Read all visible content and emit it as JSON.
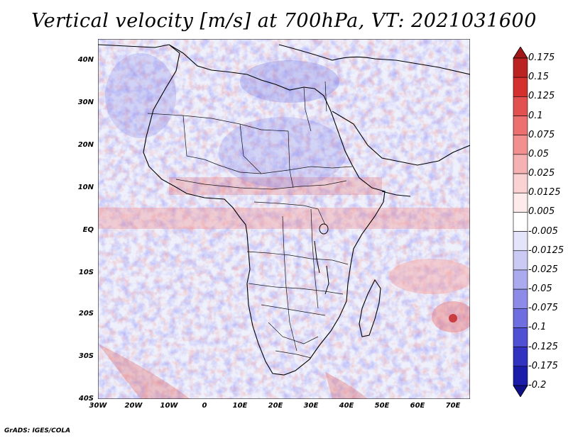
{
  "title": "Vertical velocity [m/s] at 700hPa, VT: 2021031600",
  "credit": "GrADS: IGES/COLA",
  "map": {
    "region": "Africa",
    "lat_labels": [
      "40N",
      "30N",
      "20N",
      "10N",
      "EQ",
      "10S",
      "20S",
      "30S",
      "40S"
    ],
    "lon_labels": [
      "30W",
      "20W",
      "10W",
      "0",
      "10E",
      "20E",
      "30E",
      "40E",
      "50E",
      "60E",
      "70E"
    ],
    "lat_range": [
      -40,
      45
    ],
    "lon_range": [
      -30,
      75
    ]
  },
  "colorbar": {
    "labels": [
      "0.175",
      "0.15",
      "0.125",
      "0.1",
      "0.075",
      "0.05",
      "0.025",
      "0.0125",
      "0.005",
      "-0.005",
      "-0.0125",
      "-0.025",
      "-0.05",
      "-0.075",
      "-0.1",
      "-0.125",
      "-0.175",
      "-0.2"
    ],
    "colors": [
      "#a01818",
      "#bb2222",
      "#d43030",
      "#e35050",
      "#ec7070",
      "#f29090",
      "#f6b2b2",
      "#fad2d2",
      "#fdeaea",
      "#ffffff",
      "#e4e4fb",
      "#cacaf4",
      "#aaaaee",
      "#8c8ce8",
      "#6e6ee0",
      "#5050d4",
      "#3232c0",
      "#1c1caa",
      "#101088"
    ]
  }
}
